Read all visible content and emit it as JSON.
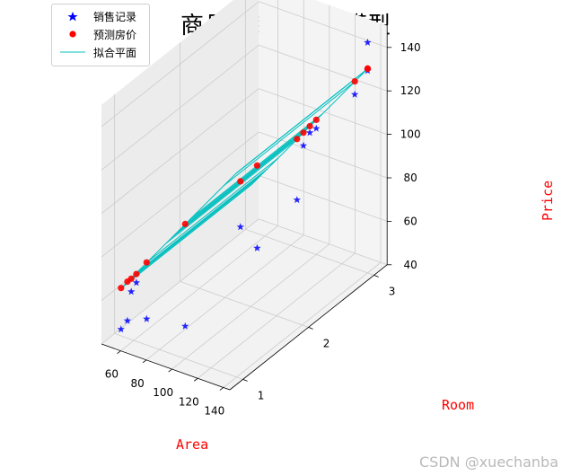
{
  "chart_data": {
    "type": "scatter3d",
    "title": "商品房销售回归模型",
    "xlabel": "Area",
    "ylabel": "Room",
    "zlabel": "Price",
    "x_ticks": [
      60,
      80,
      100,
      120,
      140
    ],
    "y_ticks": [
      1,
      2,
      3
    ],
    "z_ticks": [
      40,
      60,
      80,
      100,
      120,
      140
    ],
    "xlim": [
      45,
      145
    ],
    "ylim": [
      0.8,
      3.2
    ],
    "zlim": [
      40,
      150
    ],
    "colors": {
      "actual": "#0000ff",
      "predicted": "#ff0000",
      "plane": "#00bfbf"
    },
    "legend": {
      "position": "top-left",
      "items": [
        "销售记录",
        "预测房价",
        "拟合平面"
      ]
    },
    "plane": {
      "intercept": 21.9,
      "area_coef": 0.8,
      "room_coef": 0
    },
    "series": [
      {
        "name": "销售记录",
        "marker": "star",
        "points": [
          {
            "area": 50,
            "room": 1,
            "price": 43
          },
          {
            "area": 55,
            "room": 1,
            "price": 48
          },
          {
            "area": 58,
            "room": 1,
            "price": 62
          },
          {
            "area": 62,
            "room": 1,
            "price": 67
          },
          {
            "area": 70,
            "room": 1,
            "price": 52
          },
          {
            "area": 85,
            "room": 3,
            "price": 62
          },
          {
            "area": 90,
            "room": 3,
            "price": 88
          },
          {
            "area": 95,
            "room": 3,
            "price": 95
          },
          {
            "area": 100,
            "room": 3,
            "price": 98
          },
          {
            "area": 92,
            "room": 2,
            "price": 75
          },
          {
            "area": 105,
            "room": 2,
            "price": 68
          },
          {
            "area": 100,
            "room": 1,
            "price": 55
          },
          {
            "area": 130,
            "room": 3,
            "price": 120
          },
          {
            "area": 140,
            "room": 3,
            "price": 133
          },
          {
            "area": 140,
            "room": 3,
            "price": 146
          }
        ]
      },
      {
        "name": "预测房价",
        "marker": "circle",
        "points": [
          {
            "area": 50,
            "room": 1,
            "price": 62
          },
          {
            "area": 55,
            "room": 1,
            "price": 66
          },
          {
            "area": 58,
            "room": 1,
            "price": 68
          },
          {
            "area": 62,
            "room": 1,
            "price": 71
          },
          {
            "area": 70,
            "room": 1,
            "price": 78
          },
          {
            "area": 85,
            "room": 3,
            "price": 90
          },
          {
            "area": 90,
            "room": 3,
            "price": 94
          },
          {
            "area": 95,
            "room": 3,
            "price": 98
          },
          {
            "area": 100,
            "room": 3,
            "price": 102
          },
          {
            "area": 92,
            "room": 2,
            "price": 96
          },
          {
            "area": 105,
            "room": 2,
            "price": 106
          },
          {
            "area": 100,
            "room": 1,
            "price": 102
          },
          {
            "area": 130,
            "room": 3,
            "price": 126
          },
          {
            "area": 140,
            "room": 3,
            "price": 134
          },
          {
            "area": 140,
            "room": 3,
            "price": 134
          }
        ]
      }
    ]
  },
  "watermark": "CSDN @xuechanba"
}
